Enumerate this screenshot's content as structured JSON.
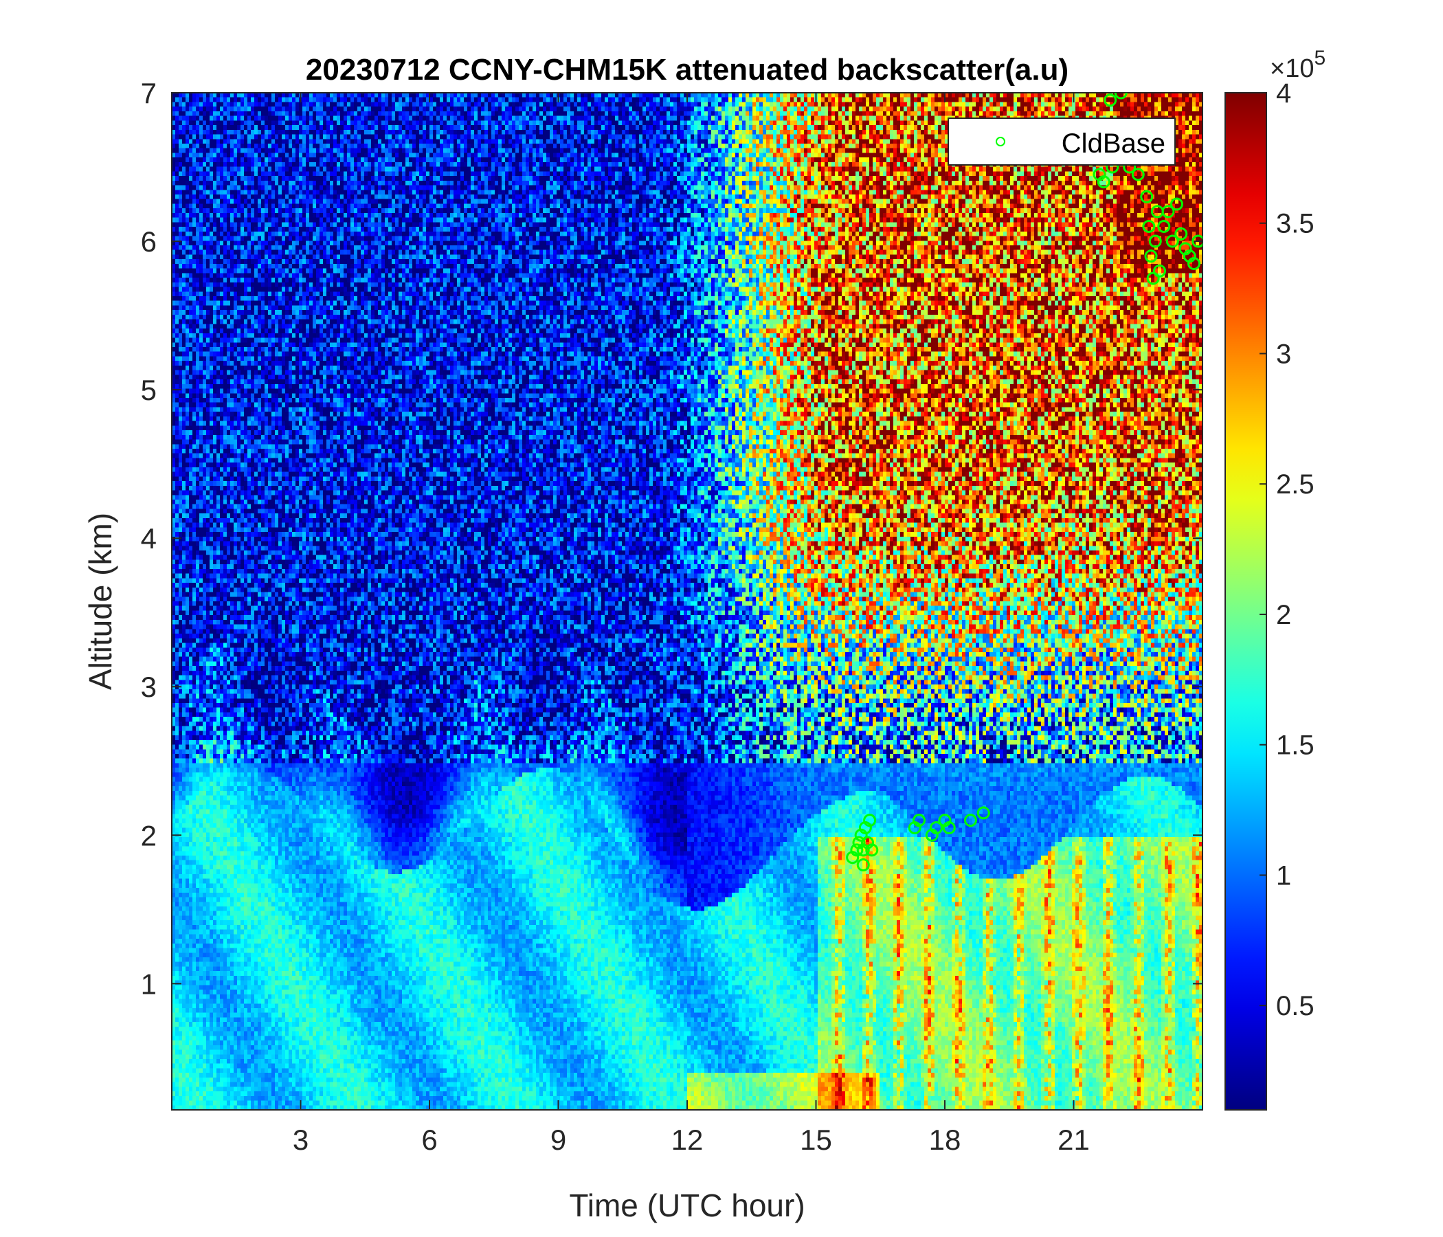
{
  "chart_data": {
    "type": "heatmap",
    "title": "20230712 CCNY-CHM15K attenuated backscatter(a.u)",
    "xlabel": "Time (UTC hour)",
    "ylabel": "Altitude (km)",
    "xlim": [
      0,
      24
    ],
    "ylim": [
      0.15,
      7
    ],
    "x_ticks": [
      3,
      6,
      9,
      12,
      15,
      18,
      21
    ],
    "y_ticks": [
      1,
      2,
      3,
      4,
      5,
      6,
      7
    ],
    "colorbar": {
      "colormap": "jet",
      "clim": [
        0.1,
        4
      ],
      "ticks": [
        0.5,
        1,
        1.5,
        2,
        2.5,
        3,
        3.5,
        4
      ],
      "exponent_label": "×10",
      "exponent_power": "5"
    },
    "legend": {
      "position": "top-right",
      "entries": [
        "CldBase"
      ]
    },
    "series": [
      {
        "name": "CldBase",
        "marker": "circle",
        "color": "#00ff00",
        "points": [
          [
            15.85,
            1.85
          ],
          [
            15.95,
            1.9
          ],
          [
            16.0,
            1.95
          ],
          [
            16.05,
            2.0
          ],
          [
            16.1,
            1.9
          ],
          [
            16.15,
            2.05
          ],
          [
            16.2,
            1.95
          ],
          [
            16.25,
            2.1
          ],
          [
            16.3,
            1.9
          ],
          [
            16.1,
            1.8
          ],
          [
            17.3,
            2.05
          ],
          [
            17.4,
            2.1
          ],
          [
            17.7,
            2.0
          ],
          [
            17.8,
            2.05
          ],
          [
            18.0,
            2.1
          ],
          [
            18.1,
            2.05
          ],
          [
            18.6,
            2.1
          ],
          [
            18.9,
            2.15
          ],
          [
            21.6,
            6.45
          ],
          [
            21.7,
            6.4
          ],
          [
            21.9,
            6.5
          ],
          [
            22.0,
            6.6
          ],
          [
            22.1,
            6.55
          ],
          [
            22.3,
            6.5
          ],
          [
            22.5,
            6.45
          ],
          [
            22.7,
            6.3
          ],
          [
            22.75,
            6.1
          ],
          [
            22.8,
            5.9
          ],
          [
            22.85,
            5.75
          ],
          [
            22.9,
            6.0
          ],
          [
            22.95,
            6.2
          ],
          [
            23.0,
            5.8
          ],
          [
            23.1,
            6.1
          ],
          [
            23.2,
            6.2
          ],
          [
            23.3,
            6.0
          ],
          [
            23.4,
            6.25
          ],
          [
            23.5,
            6.05
          ],
          [
            23.6,
            5.95
          ],
          [
            23.7,
            5.9
          ],
          [
            23.8,
            5.85
          ],
          [
            23.9,
            6.0
          ],
          [
            21.85,
            6.95
          ],
          [
            22.1,
            7.0
          ]
        ]
      }
    ]
  }
}
